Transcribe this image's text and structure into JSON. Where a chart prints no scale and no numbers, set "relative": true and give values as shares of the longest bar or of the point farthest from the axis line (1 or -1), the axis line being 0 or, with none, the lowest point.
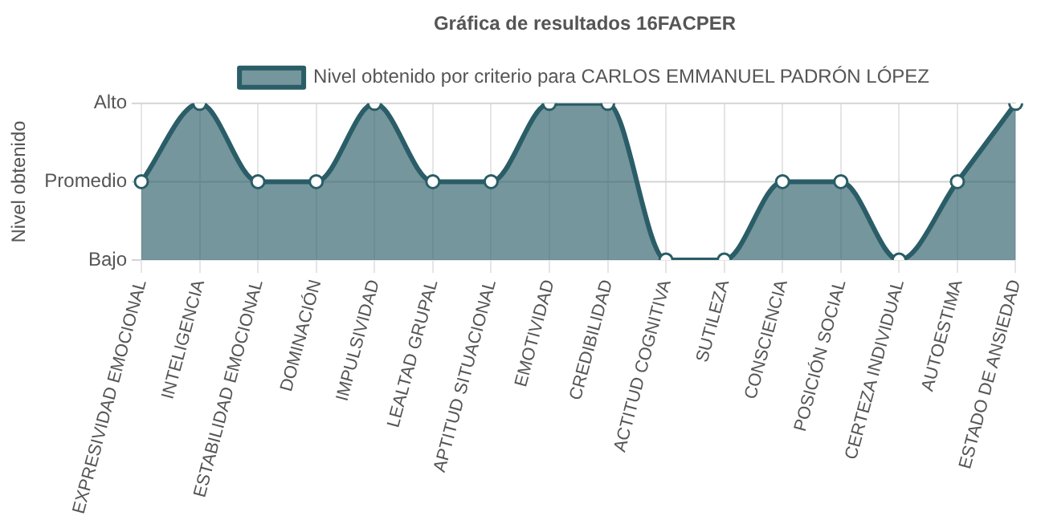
{
  "chart_data": {
    "type": "area",
    "title": "Gráfica de resultados 16FACPER",
    "ylabel": "Nivel obtenido",
    "categories": [
      "EXPRESIVIDAD EMOCIONAL",
      "INTELIGENCIA",
      "ESTABILIDAD EMOCIONAL",
      "DOMINACIÓN",
      "IMPULSIVIDAD",
      "LEALTAD GRUPAL",
      "APTITUD SITUACIONAL",
      "EMOTIVIDAD",
      "CREDIBILIDAD",
      "ACTITUD COGNITIVA",
      "SUTILEZA",
      "CONSCIENCIA",
      "POSICIÓN SOCIAL",
      "CERTEZA INDIVIDUAL",
      "AUTOESTIMA",
      "ESTADO DE ANSIEDAD"
    ],
    "series": [
      {
        "name": "Nivel obtenido por criterio para CARLOS EMMANUEL PADRÓN LÓPEZ",
        "color": "#2a5d67",
        "values": [
          0.5,
          1,
          0.5,
          0.5,
          1,
          0.5,
          0.5,
          1,
          1,
          0,
          0,
          0.5,
          0.5,
          0,
          0.5,
          1
        ]
      }
    ],
    "relative": true,
    "annotations": [
      "Alto",
      "Promedio",
      "Bajo"
    ],
    "ref_lines": [
      {
        "axis": "y",
        "value": 0.5,
        "color": "#d4d4d4"
      }
    ],
    "grid": true,
    "legend": "top",
    "marker": "circle",
    "line_style": "solid"
  }
}
